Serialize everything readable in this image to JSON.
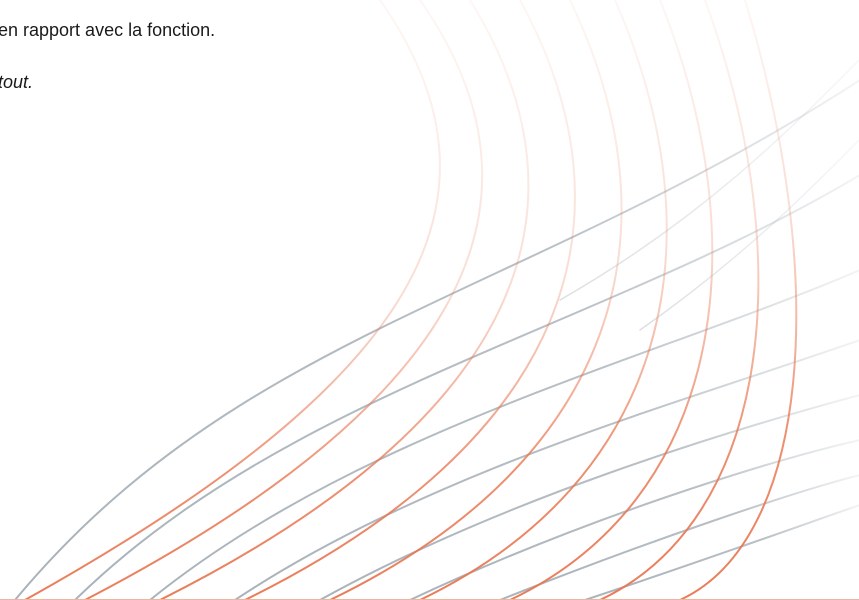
{
  "document": {
    "line_1": "en rapport avec la fonction.",
    "line_2": "tout."
  },
  "decoration": {
    "name": "wave-lines",
    "colors": {
      "gray": "#9aa5ad",
      "orange": "#e8754f",
      "rule": "#f2b49b"
    }
  }
}
